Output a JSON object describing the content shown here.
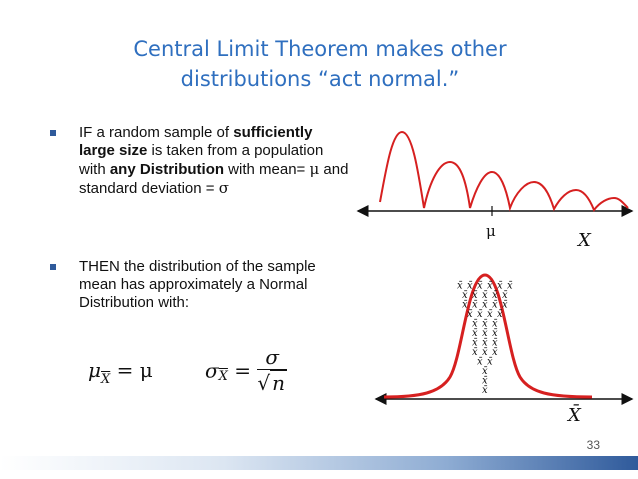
{
  "slide": {
    "title_line1": "Central Limit Theorem makes other",
    "title_line2": "distributions “act normal.”",
    "page_number": "33"
  },
  "bullet1": {
    "part1": "IF a random sample of ",
    "bold1": "sufficiently large size",
    "part2": " is taken from a population with ",
    "bold2": "any Distribution",
    "part3": " with mean= ",
    "mu": "μ",
    "part4": " and standard deviation = ",
    "sigma": "σ"
  },
  "bullet2": {
    "text": "THEN the distribution of the sample mean has approximately a Normal Distribution with:"
  },
  "formulas": {
    "mean_lhs": "μ",
    "mean_sub": "X",
    "mean_eq": "= μ",
    "sd_lhs": "σ",
    "sd_sub": "X",
    "sd_num": "σ",
    "sd_den_root": "√",
    "sd_den": "n"
  },
  "top_graph": {
    "mu_label": "μ",
    "x_label": "X"
  },
  "bottom_graph": {
    "stack_symbol": "x̄",
    "x_label": "X̄"
  },
  "colors": {
    "title": "#2F6FBF",
    "curve": "#D62020",
    "bullet": "#2F5A9B"
  }
}
